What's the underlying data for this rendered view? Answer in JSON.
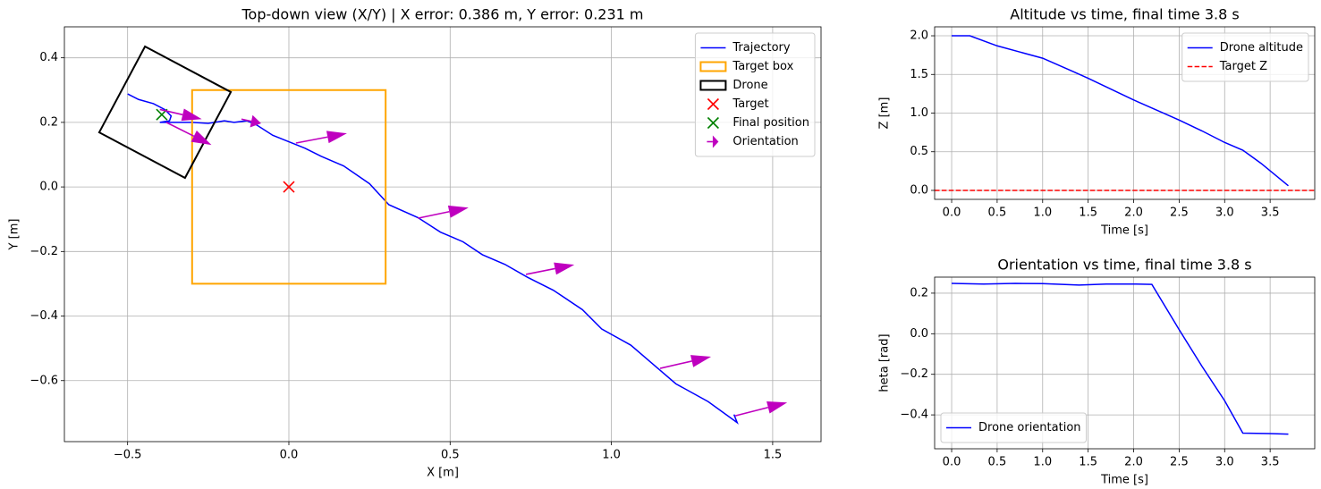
{
  "chart_data": [
    {
      "type": "line",
      "title": "Top-down view (X/Y) | X error: 0.386 m, Y error: 0.231 m",
      "xlabel": "X [m]",
      "ylabel": "Y [m]",
      "xlim": [
        -0.696,
        1.65
      ],
      "ylim": [
        -0.789,
        0.496
      ],
      "xticks": [
        {
          "value": -0.5,
          "label": "−0.5"
        },
        {
          "value": 0,
          "label": "0.0"
        },
        {
          "value": 0.5,
          "label": "0.5"
        },
        {
          "value": 1,
          "label": "1.0"
        },
        {
          "value": 1.5,
          "label": "1.5"
        }
      ],
      "yticks": [
        {
          "value": -0.6,
          "label": "−0.6"
        },
        {
          "value": -0.4,
          "label": "−0.4"
        },
        {
          "value": -0.2,
          "label": "−0.2"
        },
        {
          "value": 0,
          "label": "0.0"
        },
        {
          "value": 0.2,
          "label": "0.2"
        },
        {
          "value": 0.4,
          "label": "0.4"
        }
      ],
      "grid": true,
      "legend": "upper right",
      "series": [
        {
          "name": "Trajectory",
          "color": "#0000ff",
          "style": "line",
          "x": [
            -0.5,
            -0.466,
            -0.42,
            -0.385,
            -0.365,
            -0.37,
            -0.4,
            -0.35,
            -0.3,
            -0.25,
            -0.2,
            -0.17,
            -0.13,
            -0.1,
            -0.05,
            0.0,
            0.05,
            0.1,
            0.17,
            0.25,
            0.31,
            0.4,
            0.47,
            0.54,
            0.6,
            0.67,
            0.74,
            0.82,
            0.91,
            0.97,
            1.06,
            1.13,
            1.2,
            1.3,
            1.39,
            1.38
          ],
          "y": [
            0.288,
            0.271,
            0.258,
            0.24,
            0.22,
            0.205,
            0.2,
            0.2,
            0.2,
            0.197,
            0.205,
            0.2,
            0.205,
            0.192,
            0.16,
            0.14,
            0.12,
            0.095,
            0.065,
            0.01,
            -0.055,
            -0.095,
            -0.14,
            -0.17,
            -0.21,
            -0.24,
            -0.28,
            -0.32,
            -0.38,
            -0.44,
            -0.49,
            -0.55,
            -0.61,
            -0.665,
            -0.73,
            -0.705
          ]
        },
        {
          "name": "Target box",
          "color": "#ffa500",
          "style": "polygon",
          "x": [
            -0.3,
            0.3,
            0.3,
            -0.3
          ],
          "y": [
            -0.3,
            -0.3,
            0.3,
            0.3
          ]
        },
        {
          "name": "Drone",
          "color": "#000000",
          "style": "polygon",
          "x": [
            -0.446,
            -0.18,
            -0.322,
            -0.588
          ],
          "y": [
            0.435,
            0.294,
            0.028,
            0.169
          ]
        },
        {
          "name": "Target",
          "color": "#ff0000",
          "style": "marker",
          "x": [
            0
          ],
          "y": [
            0
          ]
        },
        {
          "name": "Final position",
          "color": "#008000",
          "style": "marker",
          "x": [
            -0.394
          ],
          "y": [
            0.224
          ]
        },
        {
          "name": "Orientation",
          "color": "#bf00bf",
          "style": "arrows",
          "x": [
            -0.4,
            -0.38,
            -0.147,
            0.022,
            0.4,
            0.735,
            1.151,
            1.384
          ],
          "y": [
            0.24,
            0.2,
            0.21,
            0.136,
            -0.097,
            -0.271,
            -0.562,
            -0.709
          ],
          "u": [
            0.13,
            0.14,
            0.061,
            0.158,
            0.157,
            0.15,
            0.158,
            0.161
          ],
          "v": [
            -0.03,
            -0.07,
            -0.013,
            0.03,
            0.033,
            0.03,
            0.036,
            0.041
          ]
        }
      ]
    },
    {
      "type": "line",
      "title": "Altitude vs time, final time 3.8 s",
      "xlabel": "Time [s]",
      "ylabel": "Z [m]",
      "xlim": [
        -0.187,
        3.99
      ],
      "ylim": [
        -0.116,
        2.116
      ],
      "xticks": [
        {
          "value": 0,
          "label": "0.0"
        },
        {
          "value": 0.5,
          "label": "0.5"
        },
        {
          "value": 1,
          "label": "1.0"
        },
        {
          "value": 1.5,
          "label": "1.5"
        },
        {
          "value": 2,
          "label": "2.0"
        },
        {
          "value": 2.5,
          "label": "2.5"
        },
        {
          "value": 3,
          "label": "3.0"
        },
        {
          "value": 3.5,
          "label": "3.5"
        }
      ],
      "yticks": [
        {
          "value": 0,
          "label": "0.0"
        },
        {
          "value": 0.5,
          "label": "0.5"
        },
        {
          "value": 1,
          "label": "1.0"
        },
        {
          "value": 1.5,
          "label": "1.5"
        },
        {
          "value": 2,
          "label": "2.0"
        }
      ],
      "grid": true,
      "legend": "upper right",
      "x": [
        0,
        0.2,
        0.5,
        0.75,
        1.0,
        1.33,
        1.5,
        2.0,
        2.5,
        2.75,
        3.0,
        3.2,
        3.4,
        3.7
      ],
      "series": [
        {
          "name": "Drone altitude",
          "color": "#0000ff",
          "values": [
            2.0,
            2.0,
            1.87,
            1.79,
            1.71,
            1.54,
            1.45,
            1.17,
            0.91,
            0.77,
            0.62,
            0.52,
            0.35,
            0.06
          ]
        }
      ],
      "hlines": [
        {
          "name": "Target Z",
          "color": "#ff0000",
          "y": 0
        }
      ]
    },
    {
      "type": "line",
      "title": "Orientation vs time, final time 3.8 s",
      "xlabel": "Time [s]",
      "ylabel": "heta [rad]",
      "xlim": [
        -0.187,
        3.99
      ],
      "ylim": [
        -0.567,
        0.279
      ],
      "xticks": [
        {
          "value": 0,
          "label": "0.0"
        },
        {
          "value": 0.5,
          "label": "0.5"
        },
        {
          "value": 1,
          "label": "1.0"
        },
        {
          "value": 1.5,
          "label": "1.5"
        },
        {
          "value": 2,
          "label": "2.0"
        },
        {
          "value": 2.5,
          "label": "2.5"
        },
        {
          "value": 3,
          "label": "3.0"
        },
        {
          "value": 3.5,
          "label": "3.5"
        }
      ],
      "yticks": [
        {
          "value": -0.4,
          "label": "−0.4"
        },
        {
          "value": -0.2,
          "label": "−0.2"
        },
        {
          "value": 0,
          "label": "0.0"
        },
        {
          "value": 0.2,
          "label": "0.2"
        }
      ],
      "grid": true,
      "legend": "lower left",
      "x": [
        0,
        0.35,
        0.7,
        1.0,
        1.4,
        1.7,
        2.0,
        2.2,
        2.5,
        2.75,
        3.0,
        3.2,
        3.5,
        3.7
      ],
      "series": [
        {
          "name": "Drone orientation",
          "color": "#0000ff",
          "values": [
            0.248,
            0.245,
            0.248,
            0.247,
            0.24,
            0.245,
            0.245,
            0.243,
            0.02,
            -0.16,
            -0.33,
            -0.49,
            -0.492,
            -0.495
          ]
        }
      ]
    }
  ]
}
